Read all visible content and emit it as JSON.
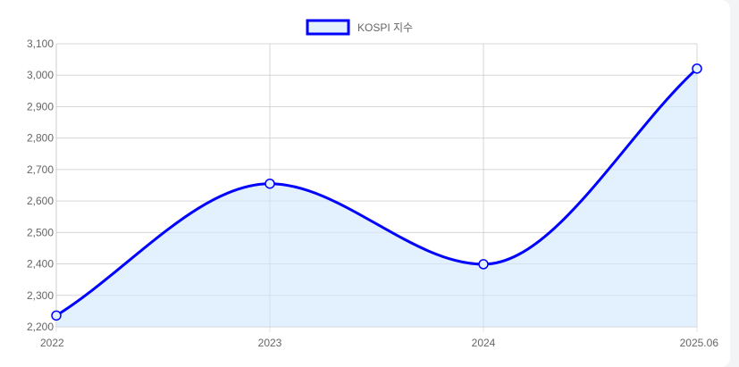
{
  "chart_data": {
    "type": "line",
    "title": "",
    "xlabel": "",
    "ylabel": "",
    "categories": [
      "2022",
      "2023",
      "2024",
      "2025.06"
    ],
    "series": [
      {
        "name": "KOSPI 지수",
        "values": [
          2236,
          2655,
          2399,
          3021
        ],
        "color": "#0000ff",
        "fill": "#e3f0fd"
      }
    ],
    "ylim": [
      2200,
      3100
    ],
    "yticks": [
      2200,
      2300,
      2400,
      2500,
      2600,
      2700,
      2800,
      2900,
      3000,
      3100
    ],
    "ytick_labels": [
      "2,200",
      "2,300",
      "2,400",
      "2,500",
      "2,600",
      "2,700",
      "2,800",
      "2,900",
      "3,000",
      "3,100"
    ],
    "grid": true,
    "legend_position": "top-center",
    "smooth": true,
    "filled": true
  }
}
